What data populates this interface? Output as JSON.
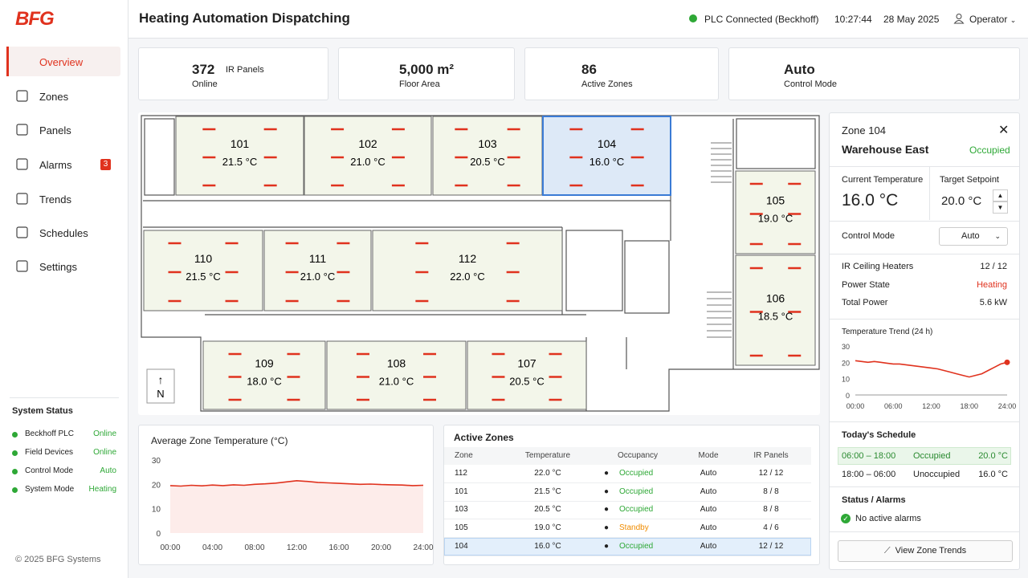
{
  "header": {
    "logo": "BFG",
    "title": "Heating Automation Dispatching",
    "plc_status": "PLC Connected (Beckhoff)",
    "time": "10:27:44",
    "date": "28 May 2025",
    "user": "Operator"
  },
  "nav": [
    {
      "label": "Overview",
      "active": true
    },
    {
      "label": "Zones"
    },
    {
      "label": "Panels"
    },
    {
      "label": "Alarms",
      "badge": "3"
    },
    {
      "label": "Trends"
    },
    {
      "label": "Schedules"
    },
    {
      "label": "Settings"
    }
  ],
  "system_status": {
    "title": "System Status",
    "items": [
      {
        "label": "Beckhoff PLC",
        "value": "Online"
      },
      {
        "label": "Field Devices",
        "value": "Online"
      },
      {
        "label": "Control Mode",
        "value": "Auto"
      },
      {
        "label": "System Mode",
        "value": "Heating"
      }
    ]
  },
  "footer": "© 2025 BFG Systems",
  "kpis": [
    {
      "value": "372",
      "unit": "IR Panels",
      "label": "Online"
    },
    {
      "value": "5,000 m²",
      "label": "Floor Area"
    },
    {
      "value": "86",
      "label": "Active Zones"
    },
    {
      "value": "Auto",
      "label": "Control Mode"
    }
  ],
  "floor_plan": {
    "north": "N",
    "zones": [
      {
        "id": "101",
        "temp": "21.5 °C"
      },
      {
        "id": "102",
        "temp": "21.0 °C"
      },
      {
        "id": "103",
        "temp": "20.5 °C"
      },
      {
        "id": "104",
        "temp": "16.0 °C",
        "selected": true
      },
      {
        "id": "105",
        "temp": "19.0 °C"
      },
      {
        "id": "106",
        "temp": "18.5 °C"
      },
      {
        "id": "110",
        "temp": "21.5 °C"
      },
      {
        "id": "111",
        "temp": "21.0 °C"
      },
      {
        "id": "112",
        "temp": "22.0 °C"
      },
      {
        "id": "109",
        "temp": "18.0 °C"
      },
      {
        "id": "108",
        "temp": "21.0 °C"
      },
      {
        "id": "107",
        "temp": "20.5 °C"
      }
    ]
  },
  "zone_detail": {
    "title": "Zone 104",
    "name": "Warehouse East",
    "occupancy": "Occupied",
    "current_label": "Current Temperature",
    "current": "16.0 °C",
    "target_label": "Target Setpoint",
    "target": "20.0 °C",
    "mode_label": "Control Mode",
    "mode": "Auto",
    "rows": [
      {
        "label": "IR Ceiling Heaters",
        "value": "12 / 12"
      },
      {
        "label": "Power State",
        "value": "Heating",
        "color": "#e0321e"
      },
      {
        "label": "Total Power",
        "value": "5.6 kW"
      }
    ],
    "schedule_title": "Today's Schedule",
    "schedule": [
      {
        "time": "06:00 – 18:00",
        "state": "Occupied",
        "temp": "20.0 °C",
        "active": true
      },
      {
        "time": "18:00 – 06:00",
        "state": "Unoccupied",
        "temp": "16.0 °C"
      }
    ],
    "alarms_title": "Status / Alarms",
    "alarms": "No active alarms",
    "button": "View Zone Trends"
  },
  "active_zones": {
    "title": "Active Zones",
    "headers": [
      "Zone",
      "Temperature",
      "Occupancy",
      "Mode",
      "IR Panels"
    ],
    "rows": [
      {
        "cells": [
          "112",
          "22.0 °C",
          "Occupied",
          "Auto",
          "12 / 12"
        ],
        "color": "#2ea836"
      },
      {
        "cells": [
          "101",
          "21.5 °C",
          "Occupied",
          "Auto",
          "8 / 8"
        ],
        "color": "#2ea836"
      },
      {
        "cells": [
          "103",
          "20.5 °C",
          "Occupied",
          "Auto",
          "8 / 8"
        ],
        "color": "#2ea836"
      },
      {
        "cells": [
          "105",
          "19.0 °C",
          "Standby",
          "Auto",
          "4 / 6"
        ],
        "color": "#f08c00"
      },
      {
        "cells": [
          "104",
          "16.0 °C",
          "Occupied",
          "Auto",
          "12 / 12"
        ],
        "color": "#2ea836",
        "selected": true
      }
    ]
  },
  "chart_data": [
    {
      "type": "line",
      "title": "Average Zone Temperature (°C)",
      "color": "#e0321e",
      "fill_area": true,
      "x": [
        0,
        1,
        2,
        3,
        4,
        5,
        6,
        7,
        8,
        9,
        10,
        11,
        12,
        13,
        14,
        15,
        16,
        17,
        18,
        19,
        20,
        21,
        22,
        23,
        24
      ],
      "values": [
        19.5,
        19.3,
        19.6,
        19.4,
        19.7,
        19.5,
        19.8,
        19.6,
        20.0,
        20.2,
        20.5,
        21.0,
        21.5,
        21.2,
        20.8,
        20.6,
        20.4,
        20.2,
        20.0,
        20.1,
        19.9,
        19.8,
        19.7,
        19.5,
        19.6
      ],
      "xlim": [
        0,
        24
      ],
      "ylim": [
        0,
        30
      ],
      "xticks": [
        {
          "value": 0,
          "label": "00:00"
        },
        {
          "value": 4,
          "label": "04:00"
        },
        {
          "value": 8,
          "label": "08:00"
        },
        {
          "value": 12,
          "label": "12:00"
        },
        {
          "value": 16,
          "label": "16:00"
        },
        {
          "value": 20,
          "label": "20:00"
        },
        {
          "value": 24,
          "label": "24:00"
        }
      ],
      "yticks": [
        0,
        10,
        20,
        30
      ]
    },
    {
      "type": "line",
      "title": "Temperature Trend (24 h)",
      "color": "#e0321e",
      "marker_last": true,
      "x": [
        0,
        1,
        2,
        3,
        4,
        5,
        6,
        7,
        8,
        9,
        10,
        11,
        12,
        13,
        14,
        15,
        16,
        17,
        18,
        19,
        20,
        21,
        22,
        23,
        24
      ],
      "values": [
        21,
        20.5,
        20,
        20.5,
        20,
        19.5,
        19,
        19,
        18.5,
        18,
        17.5,
        17,
        16.5,
        16,
        15,
        14,
        13,
        12,
        11,
        12,
        13,
        15,
        17,
        19,
        20
      ],
      "xlim": [
        0,
        24
      ],
      "ylim": [
        0,
        30
      ],
      "xticks": [
        {
          "value": 0,
          "label": "00:00"
        },
        {
          "value": 6,
          "label": "06:00"
        },
        {
          "value": 12,
          "label": "12:00"
        },
        {
          "value": 18,
          "label": "18:00"
        },
        {
          "value": 24,
          "label": "24:00"
        }
      ],
      "yticks": [
        0,
        10,
        20,
        30
      ]
    }
  ]
}
